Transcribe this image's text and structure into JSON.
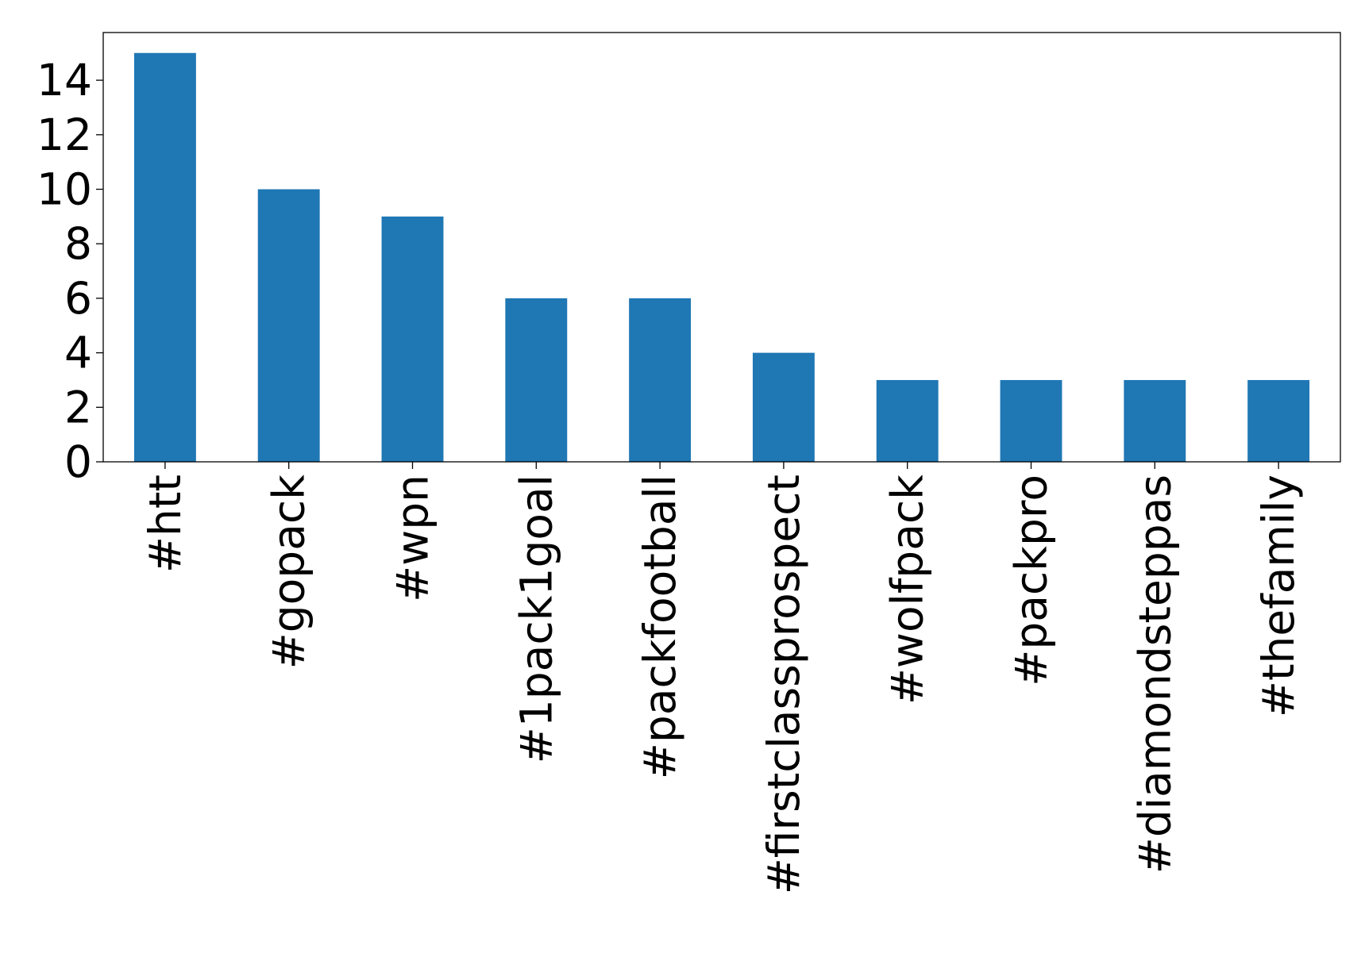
{
  "chart_data": {
    "type": "bar",
    "categories": [
      "#htt",
      "#gopack",
      "#wpn",
      "#1pack1goal",
      "#packfootball",
      "#firstclassprospect",
      "#wolfpack",
      "#packpro",
      "#diamondsteppas",
      "#thefamily"
    ],
    "values": [
      15,
      10,
      9,
      6,
      6,
      4,
      3,
      3,
      3,
      3
    ],
    "color": "#1f77b4",
    "ylim": [
      0,
      15.75
    ],
    "yticks": [
      0,
      2,
      4,
      6,
      8,
      10,
      12,
      14
    ],
    "grid": false
  }
}
